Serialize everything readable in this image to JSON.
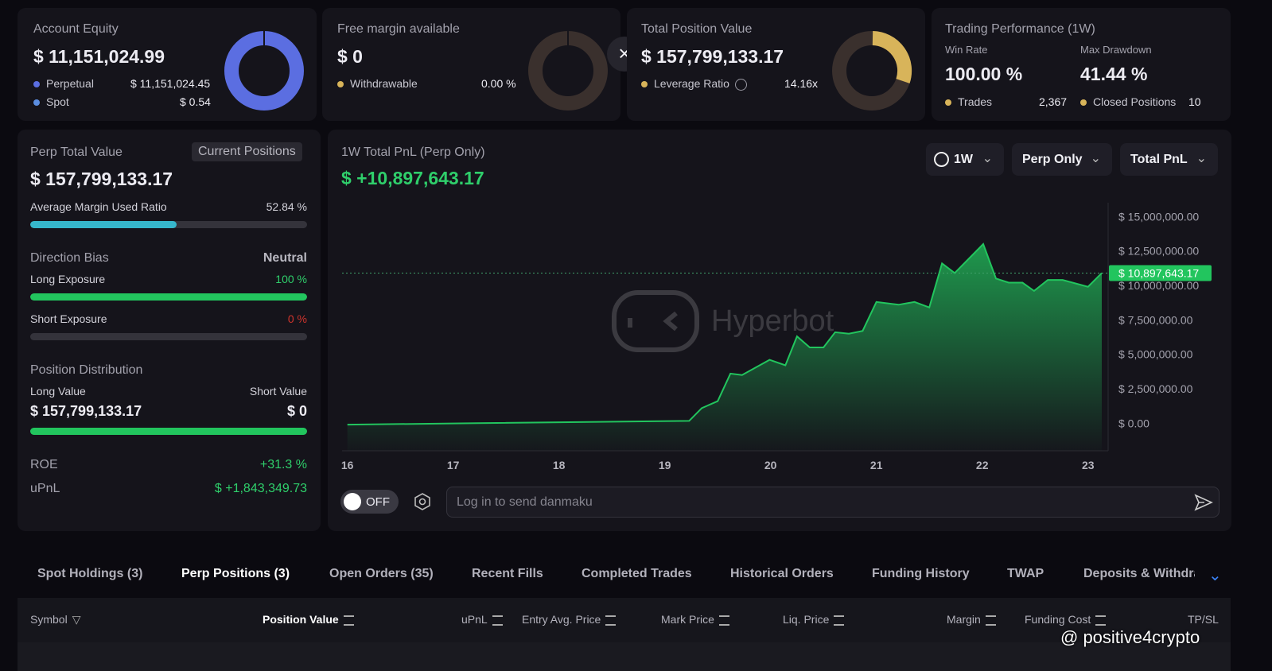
{
  "equity": {
    "label": "Account Equity",
    "value": "$ 11,151,024.99",
    "items": [
      {
        "name": "Perpetual",
        "value": "$ 11,151,024.45"
      },
      {
        "name": "Spot",
        "value": "$ 0.54"
      }
    ]
  },
  "margin": {
    "label": "Free margin available",
    "value": "$ 0",
    "items": [
      {
        "name": "Withdrawable",
        "value": "0.00 %"
      }
    ]
  },
  "position": {
    "label": "Total Position Value",
    "value": "$ 157,799,133.17",
    "items": [
      {
        "name": "Leverage Ratio",
        "value": "14.16x"
      }
    ]
  },
  "performance": {
    "label": "Trading Performance (1W)",
    "stats": [
      {
        "name": "Win Rate",
        "value": "100.00 %"
      },
      {
        "name": "Max Drawdown",
        "value": "41.44 %"
      }
    ],
    "items": [
      {
        "name": "Trades",
        "value": "2,367"
      },
      {
        "name": "Closed Positions",
        "value": "10"
      }
    ]
  },
  "perp": {
    "label": "Perp Total Value",
    "button": "Current Positions",
    "value": "$ 157,799,133.17",
    "margin_ratio": {
      "name": "Average Margin Used Ratio",
      "value": 52.84,
      "label": "52.84 %"
    }
  },
  "direction": {
    "label": "Direction Bias",
    "value": "Neutral",
    "long": {
      "name": "Long Exposure",
      "value": 100,
      "label": "100 %"
    },
    "short": {
      "name": "Short Exposure",
      "value": 0,
      "label": "0 %"
    }
  },
  "distribution": {
    "label": "Position Distribution",
    "long": {
      "name": "Long Value",
      "value": "$ 157,799,133.17"
    },
    "short": {
      "name": "Short Value",
      "value": "$ 0"
    }
  },
  "roe": {
    "name": "ROE",
    "value": "+31.3 %"
  },
  "upnl": {
    "name": "uPnL",
    "value": "$ +1,843,349.73"
  },
  "chart_data": {
    "type": "area",
    "title": "1W Total PnL (Perp Only)",
    "headline": "$ +10,897,643.17",
    "filters": [
      "1W",
      "Perp Only",
      "Total PnL"
    ],
    "watermark": "Hyperbot",
    "x": [
      16.0,
      17.23,
      19.23,
      19.35,
      19.5,
      19.62,
      19.73,
      19.99,
      20.14,
      20.25,
      20.37,
      20.5,
      20.61,
      20.74,
      20.87,
      21.0,
      21.21,
      21.36,
      21.5,
      21.62,
      21.74,
      22.01,
      22.13,
      22.25,
      22.38,
      22.49,
      22.62,
      22.76,
      23.0,
      23.13
    ],
    "series": [
      {
        "name": "Total PnL",
        "color": "#22c55e",
        "values": [
          -100000,
          0,
          170000,
          1100000,
          1600000,
          3600000,
          3500000,
          4600000,
          4200000,
          6300000,
          5500000,
          5500000,
          6600000,
          6500000,
          6700000,
          8800000,
          8600000,
          8800000,
          8400000,
          11600000,
          10900000,
          13000000,
          10500000,
          10200000,
          10200000,
          9600000,
          10400000,
          10400000,
          9900000,
          10897643.17
        ]
      }
    ],
    "current": {
      "value": 10897643.17,
      "label": "$ 10,897,643.17"
    },
    "xlim": [
      15.95,
      23.19
    ],
    "xticks": [
      16,
      17,
      18,
      19,
      20,
      21,
      22,
      23
    ],
    "ylim": [
      -2000000,
      16000000
    ],
    "yticks": [
      {
        "value": 0,
        "label": "$ 0.00"
      },
      {
        "value": 2500000,
        "label": "$ 2,500,000.00"
      },
      {
        "value": 5000000,
        "label": "$ 5,000,000.00"
      },
      {
        "value": 7500000,
        "label": "$ 7,500,000.00"
      },
      {
        "value": 10000000,
        "label": "$ 10,000,000.00"
      },
      {
        "value": 12500000,
        "label": "$ 12,500,000.00"
      },
      {
        "value": 15000000,
        "label": "$ 15,000,000.00"
      }
    ],
    "grid": false
  },
  "danmaku": {
    "toggle": "OFF",
    "placeholder": "Log in to send danmaku"
  },
  "tabs": [
    "Spot Holdings (3)",
    "Perp Positions (3)",
    "Open Orders (35)",
    "Recent Fills",
    "Completed Trades",
    "Historical Orders",
    "Funding History",
    "TWAP",
    "Deposits & Withdra"
  ],
  "table": {
    "headers": [
      "Symbol",
      "Position Value",
      "uPnL",
      "Entry Avg. Price",
      "Mark Price",
      "Liq. Price",
      "Margin",
      "Funding Cost",
      "TP/SL"
    ]
  },
  "watermark": "@ positive4crypto"
}
